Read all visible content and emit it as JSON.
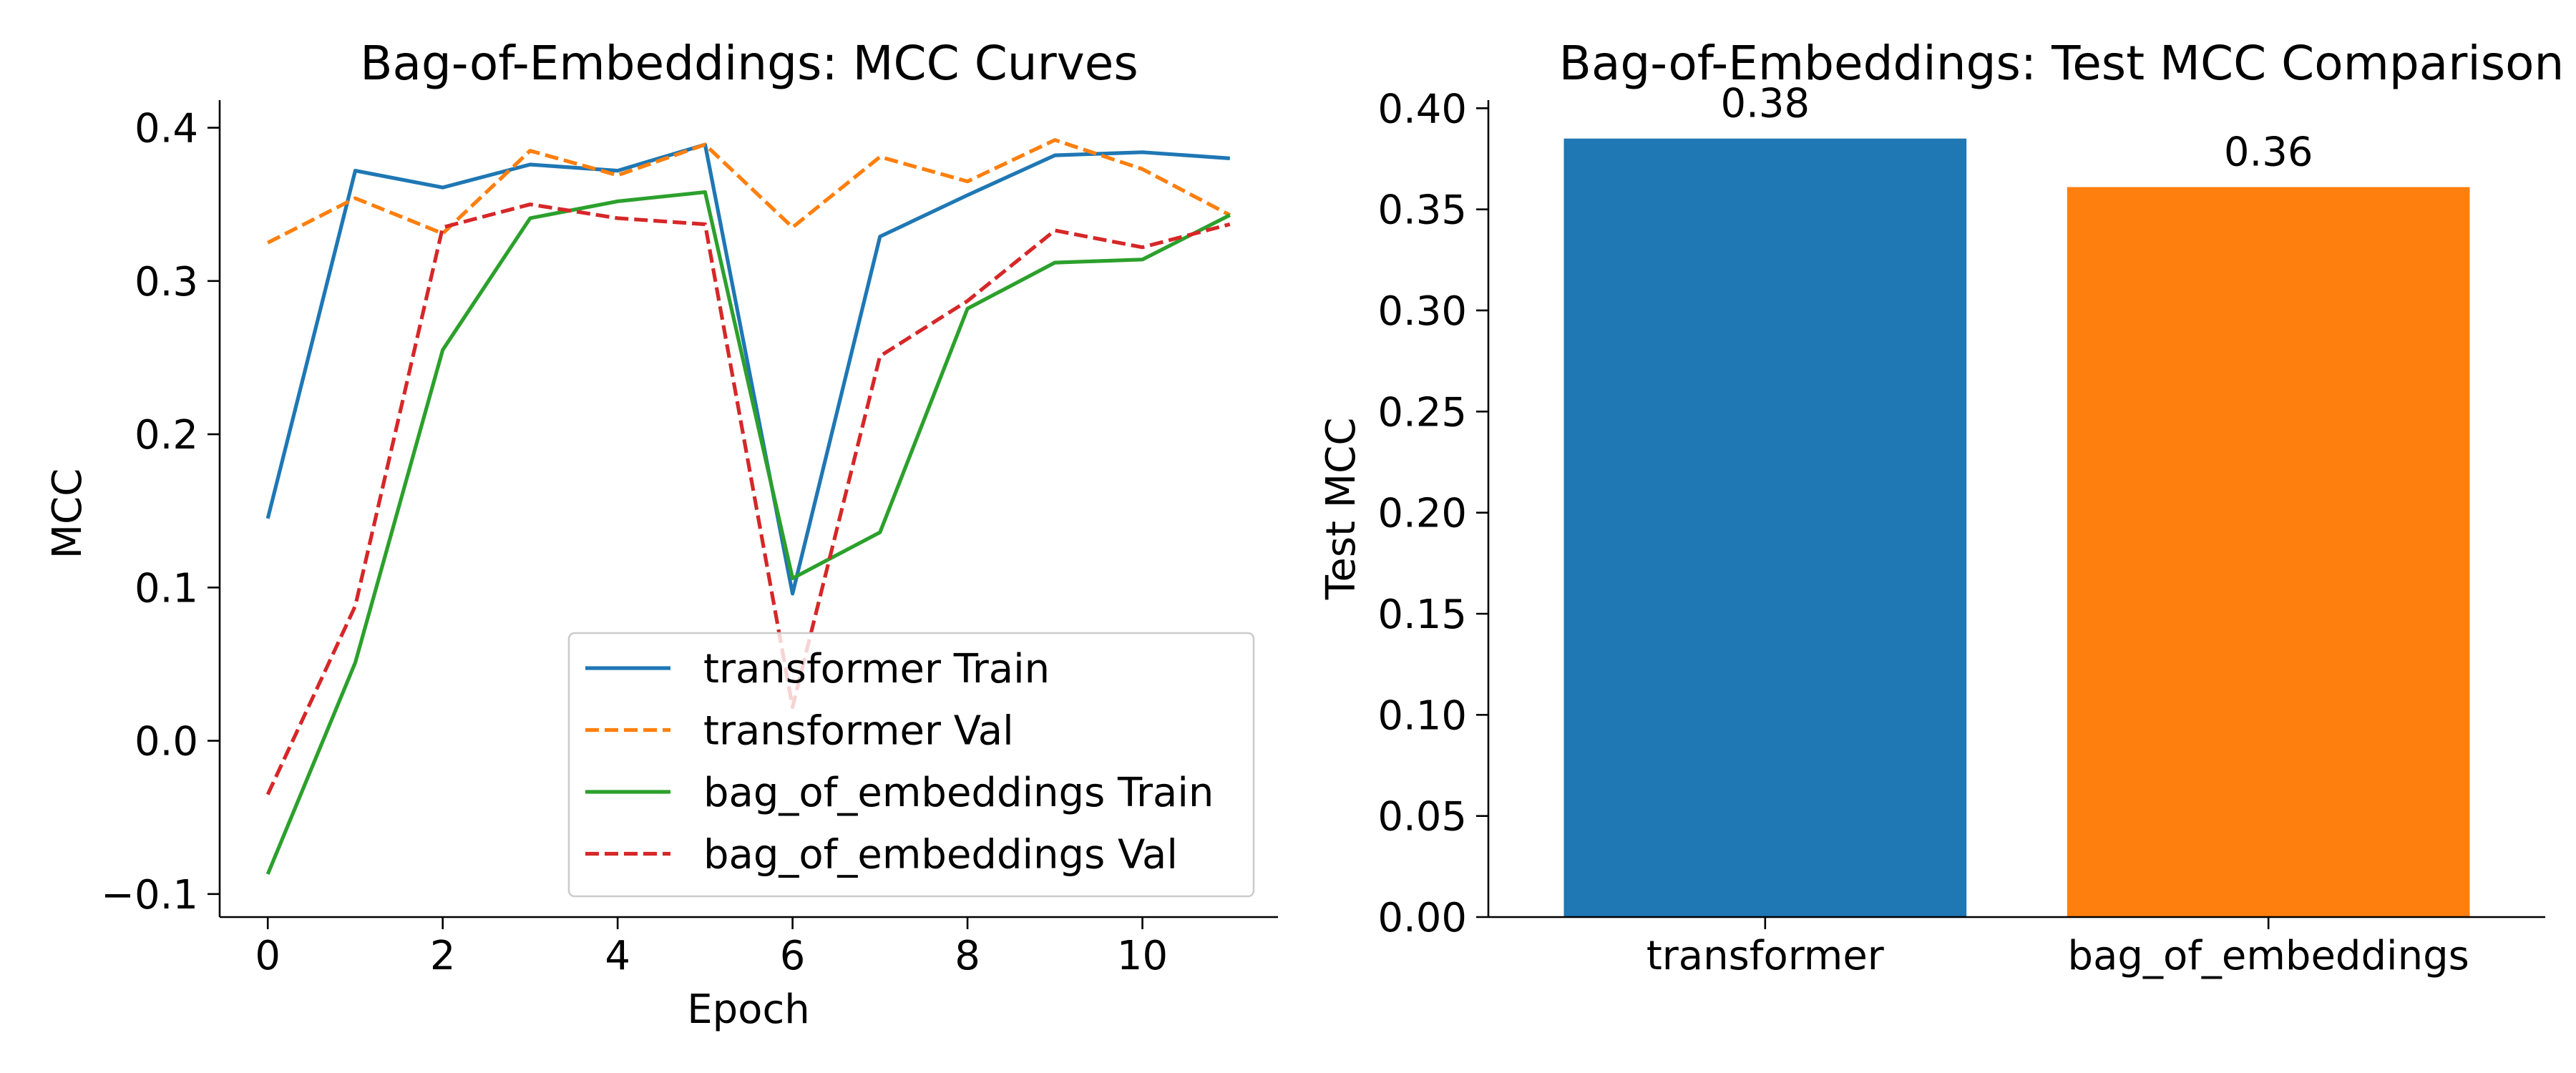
{
  "chart_data": [
    {
      "type": "line",
      "title": "Bag-of-Embeddings: MCC Curves",
      "xlabel": "Epoch",
      "ylabel": "MCC",
      "xlim": [
        -0.55,
        11.55
      ],
      "ylim": [
        -0.115,
        0.418
      ],
      "xticks": [
        0,
        2,
        4,
        6,
        8,
        10
      ],
      "yticks": [
        -0.1,
        0.0,
        0.1,
        0.2,
        0.3,
        0.4
      ],
      "ytick_labels": [
        "−0.1",
        "0.0",
        "0.1",
        "0.2",
        "0.3",
        "0.4"
      ],
      "grid": false,
      "legend_position": "lower-right",
      "x": [
        0,
        1,
        2,
        3,
        4,
        5,
        6,
        7,
        8,
        9,
        10,
        11
      ],
      "series": [
        {
          "name": "transformer Train",
          "color": "#1f77b4",
          "dash": "solid",
          "values": [
            0.145,
            0.372,
            0.361,
            0.376,
            0.372,
            0.389,
            0.096,
            0.329,
            0.356,
            0.382,
            0.384,
            0.38
          ]
        },
        {
          "name": "transformer Val",
          "color": "#ff7f0e",
          "dash": "dashed",
          "values": [
            0.325,
            0.354,
            0.331,
            0.385,
            0.369,
            0.389,
            0.335,
            0.381,
            0.365,
            0.392,
            0.373,
            0.343
          ]
        },
        {
          "name": "bag_of_embeddings Train",
          "color": "#2ca02c",
          "dash": "solid",
          "values": [
            -0.087,
            0.051,
            0.255,
            0.341,
            0.352,
            0.358,
            0.106,
            0.136,
            0.282,
            0.312,
            0.314,
            0.343
          ]
        },
        {
          "name": "bag_of_embeddings Val",
          "color": "#d62728",
          "dash": "dashed",
          "values": [
            -0.035,
            0.088,
            0.335,
            0.35,
            0.341,
            0.337,
            0.022,
            0.251,
            0.287,
            0.333,
            0.322,
            0.337
          ]
        }
      ]
    },
    {
      "type": "bar",
      "title": "Bag-of-Embeddings: Test MCC Comparison",
      "xlabel": "",
      "ylabel": "Test MCC",
      "ylim": [
        0,
        0.404
      ],
      "yticks": [
        0.0,
        0.05,
        0.1,
        0.15,
        0.2,
        0.25,
        0.3,
        0.35,
        0.4
      ],
      "ytick_labels": [
        "0.00",
        "0.05",
        "0.10",
        "0.15",
        "0.20",
        "0.25",
        "0.30",
        "0.35",
        "0.40"
      ],
      "grid": false,
      "categories": [
        "transformer",
        "bag_of_embeddings"
      ],
      "values": [
        0.385,
        0.361
      ],
      "value_labels": [
        "0.38",
        "0.36"
      ],
      "colors": [
        "#1f77b4",
        "#ff7f0e"
      ]
    }
  ]
}
